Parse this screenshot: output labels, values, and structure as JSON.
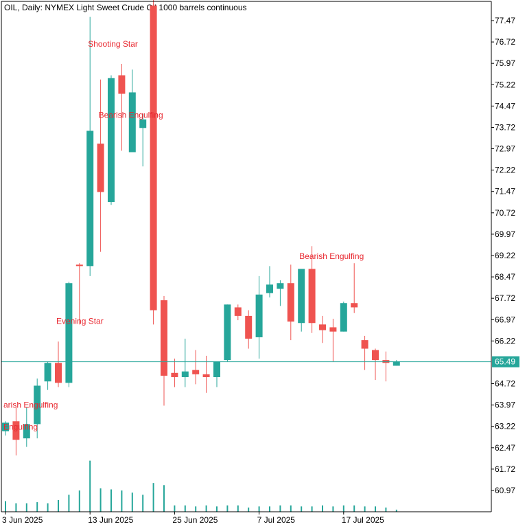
{
  "title": "OIL, Daily:  NYMEX Light Sweet Crude Oil 1000 barrels continuous",
  "colors": {
    "bull": "#26a69a",
    "bear": "#ef5350",
    "pattern_text": "#e8272f",
    "axis": "#000000",
    "price_line": "#26a69a",
    "price_label_text": "#ffffff"
  },
  "chart_data": {
    "type": "candlestick",
    "title": "OIL, Daily:  NYMEX Light Sweet Crude Oil 1000 barrels continuous",
    "ylim": [
      60.6,
      78.0
    ],
    "y_ticks": [
      "77.47",
      "76.72",
      "75.97",
      "75.22",
      "74.47",
      "73.72",
      "72.97",
      "72.22",
      "71.47",
      "70.72",
      "69.97",
      "69.22",
      "68.47",
      "67.72",
      "66.97",
      "66.22",
      "65.49",
      "64.72",
      "63.97",
      "63.22",
      "62.47",
      "61.72",
      "60.97"
    ],
    "x_tick_labels": [
      {
        "index": 0,
        "label": "3 Jun 2025"
      },
      {
        "index": 8,
        "label": "13 Jun 2025"
      },
      {
        "index": 16,
        "label": "25 Jun 2025"
      },
      {
        "index": 24,
        "label": "7 Jul 2025"
      },
      {
        "index": 32,
        "label": "17 Jul 2025"
      }
    ],
    "current_price": "65.49",
    "candles": [
      {
        "o": 63.05,
        "h": 63.4,
        "l": 62.9,
        "c": 63.35
      },
      {
        "o": 63.4,
        "h": 63.9,
        "l": 62.2,
        "c": 62.75
      },
      {
        "o": 62.8,
        "h": 63.9,
        "l": 62.5,
        "c": 63.3
      },
      {
        "o": 63.3,
        "h": 64.9,
        "l": 62.8,
        "c": 64.65
      },
      {
        "o": 64.8,
        "h": 65.5,
        "l": 64.5,
        "c": 65.45
      },
      {
        "o": 65.45,
        "h": 66.2,
        "l": 64.6,
        "c": 64.75
      },
      {
        "o": 64.75,
        "h": 68.3,
        "l": 64.6,
        "c": 68.25
      },
      {
        "o": 68.9,
        "h": 68.95,
        "l": 66.8,
        "c": 68.85
      },
      {
        "o": 68.85,
        "h": 77.6,
        "l": 68.5,
        "c": 73.6
      },
      {
        "o": 73.15,
        "h": 75.4,
        "l": 69.35,
        "c": 71.45
      },
      {
        "o": 71.1,
        "h": 75.55,
        "l": 71.0,
        "c": 75.45
      },
      {
        "o": 75.55,
        "h": 75.95,
        "l": 72.9,
        "c": 74.9
      },
      {
        "o": 72.85,
        "h": 75.75,
        "l": 72.85,
        "c": 74.95
      },
      {
        "o": 73.7,
        "h": 74.2,
        "l": 72.35,
        "c": 74.0
      },
      {
        "o": 78.0,
        "h": 78.2,
        "l": 66.8,
        "c": 67.3
      },
      {
        "o": 67.65,
        "h": 67.8,
        "l": 63.95,
        "c": 65.0
      },
      {
        "o": 65.1,
        "h": 65.6,
        "l": 64.6,
        "c": 64.95
      },
      {
        "o": 64.95,
        "h": 66.3,
        "l": 64.6,
        "c": 65.15
      },
      {
        "o": 65.2,
        "h": 65.9,
        "l": 64.7,
        "c": 65.05
      },
      {
        "o": 65.05,
        "h": 65.7,
        "l": 64.4,
        "c": 64.95
      },
      {
        "o": 64.95,
        "h": 65.4,
        "l": 64.6,
        "c": 65.5
      },
      {
        "o": 65.55,
        "h": 67.5,
        "l": 65.5,
        "c": 67.5
      },
      {
        "o": 67.4,
        "h": 67.5,
        "l": 66.95,
        "c": 67.1
      },
      {
        "o": 67.1,
        "h": 67.3,
        "l": 65.95,
        "c": 66.3
      },
      {
        "o": 66.35,
        "h": 68.5,
        "l": 65.6,
        "c": 67.85
      },
      {
        "o": 67.9,
        "h": 68.85,
        "l": 67.75,
        "c": 68.2
      },
      {
        "o": 68.05,
        "h": 68.35,
        "l": 67.45,
        "c": 68.25
      },
      {
        "o": 68.25,
        "h": 68.9,
        "l": 66.25,
        "c": 66.9
      },
      {
        "o": 66.85,
        "h": 68.75,
        "l": 66.55,
        "c": 68.75
      },
      {
        "o": 68.75,
        "h": 69.55,
        "l": 66.5,
        "c": 66.85
      },
      {
        "o": 66.8,
        "h": 67.1,
        "l": 66.15,
        "c": 66.6
      },
      {
        "o": 66.7,
        "h": 67.0,
        "l": 65.5,
        "c": 66.55
      },
      {
        "o": 66.55,
        "h": 67.6,
        "l": 66.55,
        "c": 67.55
      },
      {
        "o": 67.55,
        "h": 68.95,
        "l": 67.2,
        "c": 67.4
      },
      {
        "o": 66.25,
        "h": 66.4,
        "l": 65.2,
        "c": 65.95
      },
      {
        "o": 65.9,
        "h": 65.95,
        "l": 64.85,
        "c": 65.55
      },
      {
        "o": 65.55,
        "h": 65.85,
        "l": 64.8,
        "c": 65.45
      },
      {
        "o": 65.35,
        "h": 65.55,
        "l": 65.35,
        "c": 65.5
      }
    ],
    "volumes": [
      0.5,
      0.4,
      0.4,
      0.45,
      0.4,
      0.55,
      0.8,
      1.0,
      2.4,
      1.1,
      1.05,
      1.0,
      0.9,
      0.8,
      1.35,
      1.25,
      0.3,
      0.3,
      0.25,
      0.3,
      0.25,
      0.3,
      0.3,
      0.2,
      0.25,
      0.25,
      0.3,
      0.3,
      0.25,
      0.25,
      0.3,
      0.25,
      0.3,
      0.3,
      0.25,
      0.25,
      0.2,
      0.1
    ],
    "annotations": [
      {
        "text": "Shooting Star",
        "index": 8,
        "price": 76.65
      },
      {
        "text": "Bearish Engulfing",
        "index": 9,
        "price": 74.15
      },
      {
        "text": "Bearish Engulfing",
        "index": 28,
        "price": 69.2
      },
      {
        "text": "Evening Star",
        "index": 5,
        "price": 66.92
      },
      {
        "text": "arish Engulfing",
        "index": 0,
        "price": 63.97
      },
      {
        "text": "Engulfing",
        "index": 0,
        "price": 63.2
      }
    ]
  }
}
